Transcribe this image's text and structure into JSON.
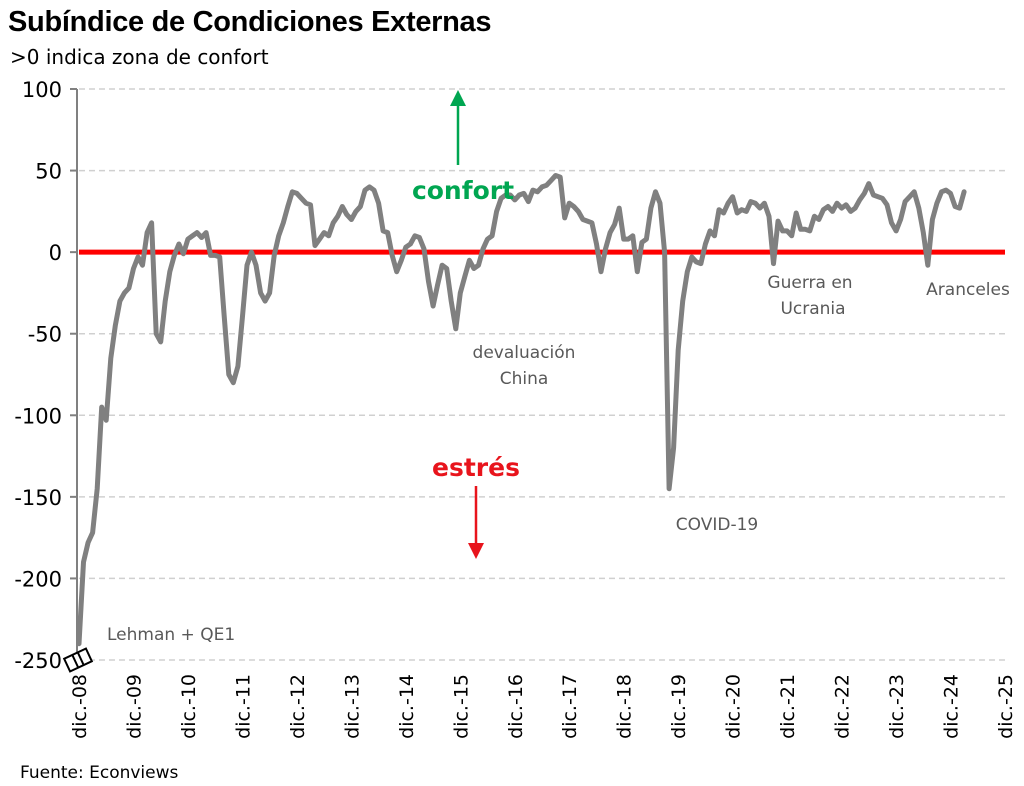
{
  "header": {
    "title": "Subíndice de Condiciones Externas",
    "subtitle": ">0 indica zona de confort"
  },
  "footer": {
    "source": "Fuente: Econviews"
  },
  "colors": {
    "series": "#808080",
    "zero_line": "#ff0000",
    "confort": "#00a651",
    "estres": "#e8141c",
    "grid": "#d0d0d0"
  },
  "chart_data": {
    "type": "line",
    "title": "Subíndice de Condiciones Externas",
    "subtitle": ">0 indica zona de confort",
    "xlabel": "",
    "ylabel": "",
    "ylim": [
      -250,
      100
    ],
    "yticks": [
      100,
      50,
      0,
      -50,
      -100,
      -150,
      -200,
      -250
    ],
    "ytick_labels": [
      "100",
      "50",
      "0",
      "-50",
      "-100",
      "-150",
      "-200",
      "-250"
    ],
    "xtick_labels": [
      "dic.-08",
      "dic.-09",
      "dic.-10",
      "dic.-11",
      "dic.-12",
      "dic.-13",
      "dic.-14",
      "dic.-15",
      "dic.-16",
      "dic.-17",
      "dic.-18",
      "dic.-19",
      "dic.-20",
      "dic.-21",
      "dic.-22",
      "dic.-23",
      "dic.-24",
      "dic.-25"
    ],
    "x_unit": "months since dic.-08",
    "xlim": [
      0,
      204
    ],
    "grid": true,
    "reference_line": {
      "value": 0,
      "color": "#ff0000"
    },
    "series": [
      {
        "name": "Subíndice de Condiciones Externas",
        "points": [
          [
            0,
            -240
          ],
          [
            1,
            -190
          ],
          [
            2,
            -178
          ],
          [
            3,
            -172
          ],
          [
            4,
            -145
          ],
          [
            5,
            -95
          ],
          [
            6,
            -103
          ],
          [
            7,
            -65
          ],
          [
            8,
            -45
          ],
          [
            9,
            -30
          ],
          [
            10,
            -25
          ],
          [
            11,
            -22
          ],
          [
            12,
            -10
          ],
          [
            13,
            -3
          ],
          [
            14,
            -8
          ],
          [
            15,
            12
          ],
          [
            16,
            18
          ],
          [
            17,
            -50
          ],
          [
            18,
            -55
          ],
          [
            19,
            -30
          ],
          [
            20,
            -12
          ],
          [
            21,
            -2
          ],
          [
            22,
            5
          ],
          [
            23,
            -1
          ],
          [
            24,
            8
          ],
          [
            25,
            10
          ],
          [
            26,
            12
          ],
          [
            27,
            9
          ],
          [
            28,
            12
          ],
          [
            29,
            -2
          ],
          [
            30,
            -2
          ],
          [
            31,
            -3
          ],
          [
            32,
            -40
          ],
          [
            33,
            -75
          ],
          [
            34,
            -80
          ],
          [
            35,
            -70
          ],
          [
            36,
            -40
          ],
          [
            37,
            -8
          ],
          [
            38,
            0
          ],
          [
            39,
            -8
          ],
          [
            40,
            -25
          ],
          [
            41,
            -30
          ],
          [
            42,
            -25
          ],
          [
            43,
            -2
          ],
          [
            44,
            10
          ],
          [
            45,
            18
          ],
          [
            46,
            28
          ],
          [
            47,
            37
          ],
          [
            48,
            36
          ],
          [
            49,
            33
          ],
          [
            50,
            30
          ],
          [
            51,
            29
          ],
          [
            52,
            4
          ],
          [
            53,
            8
          ],
          [
            54,
            12
          ],
          [
            55,
            10
          ],
          [
            56,
            18
          ],
          [
            57,
            22
          ],
          [
            58,
            28
          ],
          [
            59,
            23
          ],
          [
            60,
            20
          ],
          [
            61,
            25
          ],
          [
            62,
            28
          ],
          [
            63,
            38
          ],
          [
            64,
            40
          ],
          [
            65,
            38
          ],
          [
            66,
            30
          ],
          [
            67,
            13
          ],
          [
            68,
            12
          ],
          [
            69,
            -2
          ],
          [
            70,
            -12
          ],
          [
            71,
            -5
          ],
          [
            72,
            3
          ],
          [
            73,
            5
          ],
          [
            74,
            10
          ],
          [
            75,
            9
          ],
          [
            76,
            2
          ],
          [
            77,
            -18
          ],
          [
            78,
            -33
          ],
          [
            79,
            -20
          ],
          [
            80,
            -8
          ],
          [
            81,
            -10
          ],
          [
            82,
            -30
          ],
          [
            83,
            -47
          ],
          [
            84,
            -25
          ],
          [
            85,
            -15
          ],
          [
            86,
            -5
          ],
          [
            87,
            -10
          ],
          [
            88,
            -8
          ],
          [
            89,
            2
          ],
          [
            90,
            8
          ],
          [
            91,
            10
          ],
          [
            92,
            25
          ],
          [
            93,
            33
          ],
          [
            94,
            35
          ],
          [
            95,
            35
          ],
          [
            96,
            32
          ],
          [
            97,
            35
          ],
          [
            98,
            36
          ],
          [
            99,
            31
          ],
          [
            100,
            38
          ],
          [
            101,
            37
          ],
          [
            102,
            40
          ],
          [
            103,
            41
          ],
          [
            104,
            44
          ],
          [
            105,
            47
          ],
          [
            106,
            46
          ],
          [
            107,
            21
          ],
          [
            108,
            30
          ],
          [
            109,
            28
          ],
          [
            110,
            25
          ],
          [
            111,
            20
          ],
          [
            112,
            19
          ],
          [
            113,
            18
          ],
          [
            114,
            5
          ],
          [
            115,
            -12
          ],
          [
            116,
            2
          ],
          [
            117,
            12
          ],
          [
            118,
            17
          ],
          [
            119,
            27
          ],
          [
            120,
            8
          ],
          [
            121,
            8
          ],
          [
            122,
            10
          ],
          [
            123,
            -12
          ],
          [
            124,
            6
          ],
          [
            125,
            8
          ],
          [
            126,
            27
          ],
          [
            127,
            37
          ],
          [
            128,
            30
          ],
          [
            129,
            0
          ],
          [
            130,
            -145
          ],
          [
            131,
            -120
          ],
          [
            132,
            -60
          ],
          [
            133,
            -30
          ],
          [
            134,
            -12
          ],
          [
            135,
            -3
          ],
          [
            136,
            -6
          ],
          [
            137,
            -7
          ],
          [
            138,
            5
          ],
          [
            139,
            13
          ],
          [
            140,
            10
          ],
          [
            141,
            26
          ],
          [
            142,
            24
          ],
          [
            143,
            30
          ],
          [
            144,
            34
          ],
          [
            145,
            24
          ],
          [
            146,
            26
          ],
          [
            147,
            25
          ],
          [
            148,
            31
          ],
          [
            149,
            30
          ],
          [
            150,
            27
          ],
          [
            151,
            30
          ],
          [
            152,
            22
          ],
          [
            153,
            -7
          ],
          [
            154,
            19
          ],
          [
            155,
            13
          ],
          [
            156,
            13
          ],
          [
            157,
            10
          ],
          [
            158,
            24
          ],
          [
            159,
            14
          ],
          [
            160,
            14
          ],
          [
            161,
            13
          ],
          [
            162,
            22
          ],
          [
            163,
            20
          ],
          [
            164,
            26
          ],
          [
            165,
            28
          ],
          [
            166,
            25
          ],
          [
            167,
            30
          ],
          [
            168,
            27
          ],
          [
            169,
            29
          ],
          [
            170,
            25
          ],
          [
            171,
            27
          ],
          [
            172,
            32
          ],
          [
            173,
            36
          ],
          [
            174,
            42
          ],
          [
            175,
            35
          ],
          [
            176,
            34
          ],
          [
            177,
            33
          ],
          [
            178,
            29
          ],
          [
            179,
            18
          ],
          [
            180,
            13
          ],
          [
            181,
            20
          ],
          [
            182,
            31
          ],
          [
            183,
            34
          ],
          [
            184,
            37
          ],
          [
            185,
            27
          ],
          [
            186,
            12
          ],
          [
            187,
            -8
          ],
          [
            188,
            20
          ],
          [
            189,
            30
          ],
          [
            190,
            37
          ],
          [
            191,
            38
          ],
          [
            192,
            36
          ],
          [
            193,
            28
          ],
          [
            194,
            27
          ],
          [
            195,
            37
          ]
        ]
      }
    ],
    "annotations": [
      {
        "text": "Lehman + QE1"
      },
      {
        "text": "devaluación",
        "text2": "China"
      },
      {
        "text": "COVID-19"
      },
      {
        "text": "Guerra en",
        "text2": "Ucrania"
      },
      {
        "text": "Aranceles"
      },
      {
        "text": "confort",
        "direction": "up"
      },
      {
        "text": "estrés",
        "direction": "down"
      }
    ]
  }
}
